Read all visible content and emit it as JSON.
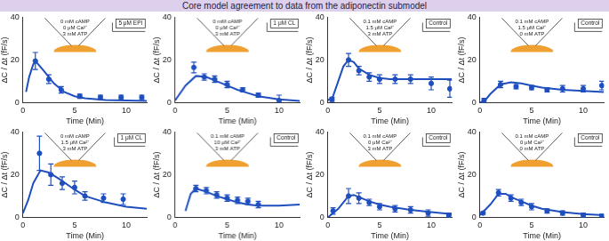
{
  "title": "Core model agreement to data from the adiponectin submodel",
  "chart_data": [
    {
      "type": "line",
      "x_label": "Time (Min)",
      "y_label": "ΔC / Δt (fF/s)",
      "xlim": [
        0,
        12
      ],
      "xticks": [
        0,
        5,
        10
      ],
      "ylim": [
        0,
        40
      ],
      "yticks": [
        0,
        20,
        40
      ],
      "grid": false,
      "annotations": [
        "0 mM cAMP",
        "0 μM Ca²⁺",
        "3 mM ATP"
      ],
      "condition": "5 μM EPI",
      "series": [
        {
          "type": "line",
          "color": "#1f4fbf",
          "x": [
            0.3,
            0.6,
            1,
            1.3,
            2,
            3,
            4,
            5,
            6,
            8,
            10,
            12
          ],
          "values": [
            5,
            12,
            18,
            19,
            15,
            9,
            5,
            3,
            2,
            1.2,
            1,
            0.8
          ]
        },
        {
          "type": "scatter",
          "color": "#1f4fbf",
          "x": [
            1.2,
            2.5,
            3.7,
            5.5,
            7.5,
            9.5,
            11.5
          ],
          "values": [
            19.5,
            11,
            6,
            3,
            2.5,
            2.5,
            2.5
          ],
          "errors": [
            4,
            2,
            1.5,
            1,
            1,
            1,
            1
          ]
        }
      ]
    },
    {
      "type": "line",
      "x_label": "Time (Min)",
      "y_label": "ΔC / Δt (fF/s)",
      "xlim": [
        0,
        12
      ],
      "xticks": [
        0,
        5,
        10
      ],
      "ylim": [
        0,
        40
      ],
      "yticks": [
        0,
        20,
        40
      ],
      "grid": false,
      "annotations": [
        "0 mM cAMP",
        "0 μM Ca²⁺",
        "3 mM ATP"
      ],
      "condition": "1 μM CL",
      "series": [
        {
          "type": "line",
          "color": "#1f4fbf",
          "x": [
            0,
            1,
            2,
            3,
            4,
            5,
            6,
            7,
            8,
            10,
            12
          ],
          "values": [
            1,
            8,
            12.5,
            12,
            10,
            8,
            6,
            4.5,
            3,
            1.5,
            0.8
          ]
        },
        {
          "type": "scatter",
          "color": "#1f4fbf",
          "x": [
            1.8,
            2.8,
            3.8,
            5,
            6.5,
            8,
            10
          ],
          "values": [
            16.5,
            12,
            11,
            8.5,
            6,
            3.5,
            1
          ],
          "errors": [
            2.5,
            1.5,
            1.5,
            1.5,
            1,
            1,
            2.5
          ]
        }
      ]
    },
    {
      "type": "line",
      "x_label": "Time (Min)",
      "y_label": "ΔC / Δt (fF/s)",
      "xlim": [
        0,
        12
      ],
      "xticks": [
        0,
        5,
        10
      ],
      "ylim": [
        0,
        40
      ],
      "yticks": [
        0,
        20,
        40
      ],
      "grid": false,
      "annotations": [
        "0.1 mM cAMP",
        "1.5 μM Ca²⁺",
        "3 mM ATP"
      ],
      "condition": "Control",
      "series": [
        {
          "type": "line",
          "color": "#1f4fbf",
          "x": [
            0,
            0.5,
            1,
            1.5,
            2,
            2.5,
            3,
            4,
            5,
            6,
            8,
            10,
            12
          ],
          "values": [
            1,
            3,
            10,
            17,
            20,
            19,
            16,
            13,
            11.5,
            11,
            11,
            11,
            11
          ]
        },
        {
          "type": "scatter",
          "color": "#1f4fbf",
          "x": [
            0.4,
            2,
            3,
            4,
            5,
            6.5,
            8,
            10,
            11.8
          ],
          "values": [
            1.5,
            20,
            15,
            12,
            11,
            11,
            11,
            9,
            6.5
          ],
          "errors": [
            1,
            3,
            2,
            2,
            2,
            2,
            2,
            3,
            4
          ]
        }
      ]
    },
    {
      "type": "line",
      "x_label": "Time (Min)",
      "y_label": "ΔC / Δt (fF/s)",
      "xlim": [
        0,
        12
      ],
      "xticks": [
        0,
        5,
        10
      ],
      "ylim": [
        0,
        40
      ],
      "yticks": [
        0,
        20,
        40
      ],
      "grid": false,
      "annotations": [
        "0.1 mM cAMP",
        "1.5 μM Ca²⁺",
        "0 mM ATP"
      ],
      "condition": "Control",
      "series": [
        {
          "type": "line",
          "color": "#1f4fbf",
          "x": [
            0,
            0.5,
            1,
            2,
            3,
            4,
            5,
            6,
            8,
            10,
            12
          ],
          "values": [
            0,
            1,
            4,
            8.5,
            9.5,
            9,
            8,
            7,
            6,
            5.5,
            5
          ]
        },
        {
          "type": "scatter",
          "color": "#1f4fbf",
          "x": [
            0.4,
            2,
            3.5,
            5,
            6.5,
            8,
            10,
            11.8
          ],
          "values": [
            1,
            8.5,
            7.5,
            7,
            6,
            6.5,
            6.5,
            8
          ],
          "errors": [
            1,
            1.5,
            1,
            1,
            1,
            1.5,
            1.5,
            2
          ]
        }
      ]
    },
    {
      "type": "line",
      "x_label": "Time (Min)",
      "y_label": "ΔC / Δt (fF/s)",
      "xlim": [
        0,
        12
      ],
      "xticks": [
        0,
        5,
        10
      ],
      "ylim": [
        0,
        40
      ],
      "yticks": [
        0,
        20,
        40
      ],
      "grid": false,
      "annotations": [
        "0 mM cAMP",
        "1.5 μM Ca²⁺",
        "3 mM ATP"
      ],
      "condition": "1 μM CL",
      "series": [
        {
          "type": "line",
          "color": "#1f4fbf",
          "x": [
            0,
            0.5,
            1,
            1.7,
            2.5,
            3.5,
            5,
            6,
            8,
            10,
            12
          ],
          "values": [
            2,
            8,
            16,
            22,
            21,
            18,
            13,
            10,
            7,
            5,
            4
          ]
        },
        {
          "type": "scatter",
          "color": "#1f4fbf",
          "x": [
            1.6,
            2.7,
            3.8,
            5,
            6,
            7.8,
            9.7
          ],
          "values": [
            30,
            20,
            16,
            14,
            10,
            9,
            8.5
          ],
          "errors": [
            8,
            5,
            3,
            3,
            2,
            2,
            2.5
          ]
        }
      ]
    },
    {
      "type": "line",
      "x_label": "Time (Min)",
      "y_label": "ΔC / Δt (fF/s)",
      "xlim": [
        0,
        12
      ],
      "xticks": [
        0,
        5,
        10
      ],
      "ylim": [
        0,
        40
      ],
      "yticks": [
        0,
        20,
        40
      ],
      "grid": false,
      "annotations": [
        "0.1 mM cAMP",
        "10 μM Ca²⁺",
        "3 mM ATP"
      ],
      "condition": "Control",
      "series": [
        {
          "type": "line",
          "color": "#1f4fbf",
          "x": [
            1,
            1.5,
            2,
            3,
            4,
            5,
            6,
            7,
            8,
            10,
            12
          ],
          "values": [
            3,
            11,
            13.5,
            12,
            10,
            8.5,
            7,
            6,
            5.5,
            5.5,
            6
          ]
        },
        {
          "type": "scatter",
          "color": "#1f4fbf",
          "x": [
            2,
            3,
            4,
            5,
            6,
            7,
            8
          ],
          "values": [
            13.5,
            12.5,
            10.5,
            9,
            8,
            7.5,
            6
          ],
          "errors": [
            1.5,
            1.5,
            1.5,
            1.5,
            1.5,
            1.5,
            1.5
          ]
        }
      ]
    },
    {
      "type": "line",
      "x_label": "Time (Min)",
      "y_label": "ΔC / Δt (fF/s)",
      "xlim": [
        0,
        12
      ],
      "xticks": [
        0,
        5,
        10
      ],
      "ylim": [
        0,
        40
      ],
      "yticks": [
        0,
        20,
        40
      ],
      "grid": false,
      "annotations": [
        "0.1 mM cAMP",
        "0 μM Ca²⁺",
        "3 mM ATP"
      ],
      "condition": "Control",
      "series": [
        {
          "type": "line",
          "color": "#1f4fbf",
          "x": [
            0,
            1,
            2,
            2.5,
            3,
            4,
            5,
            6,
            8,
            10,
            12
          ],
          "values": [
            0,
            4,
            10,
            10.5,
            9.5,
            7.5,
            6,
            5,
            3.5,
            2.5,
            1.5
          ]
        },
        {
          "type": "scatter",
          "color": "#1f4fbf",
          "x": [
            0.5,
            2,
            3,
            4,
            5,
            6.5,
            8,
            9.7,
            11.7
          ],
          "values": [
            3,
            10,
            9,
            7,
            5,
            4,
            3.5,
            2,
            1
          ],
          "errors": [
            1.5,
            3.5,
            2.5,
            1.5,
            1.5,
            1.5,
            1.5,
            1.5,
            1
          ]
        }
      ]
    },
    {
      "type": "line",
      "x_label": "Time (Min)",
      "y_label": "ΔC / Δt (fF/s)",
      "xlim": [
        0,
        12
      ],
      "xticks": [
        0,
        5,
        10
      ],
      "ylim": [
        0,
        40
      ],
      "yticks": [
        0,
        20,
        40
      ],
      "grid": false,
      "annotations": [
        "0.1 mM cAMP",
        "0 μM Ca²⁺",
        "0 mM ATP"
      ],
      "condition": "Control",
      "series": [
        {
          "type": "line",
          "color": "#1f4fbf",
          "x": [
            0,
            1,
            1.8,
            2.5,
            3,
            4,
            5,
            6,
            8,
            10,
            12
          ],
          "values": [
            1,
            6,
            11,
            11,
            9.5,
            7.5,
            5.5,
            4,
            2.5,
            1.5,
            1
          ]
        },
        {
          "type": "scatter",
          "color": "#1f4fbf",
          "x": [
            0.3,
            1.8,
            3,
            4,
            5,
            6.5,
            8,
            10,
            11.8
          ],
          "values": [
            2,
            11.5,
            9,
            7,
            5,
            3,
            2,
            1,
            0.5
          ],
          "errors": [
            0.5,
            1.5,
            1.5,
            1.5,
            1.5,
            1,
            1,
            1,
            1
          ]
        }
      ]
    }
  ]
}
